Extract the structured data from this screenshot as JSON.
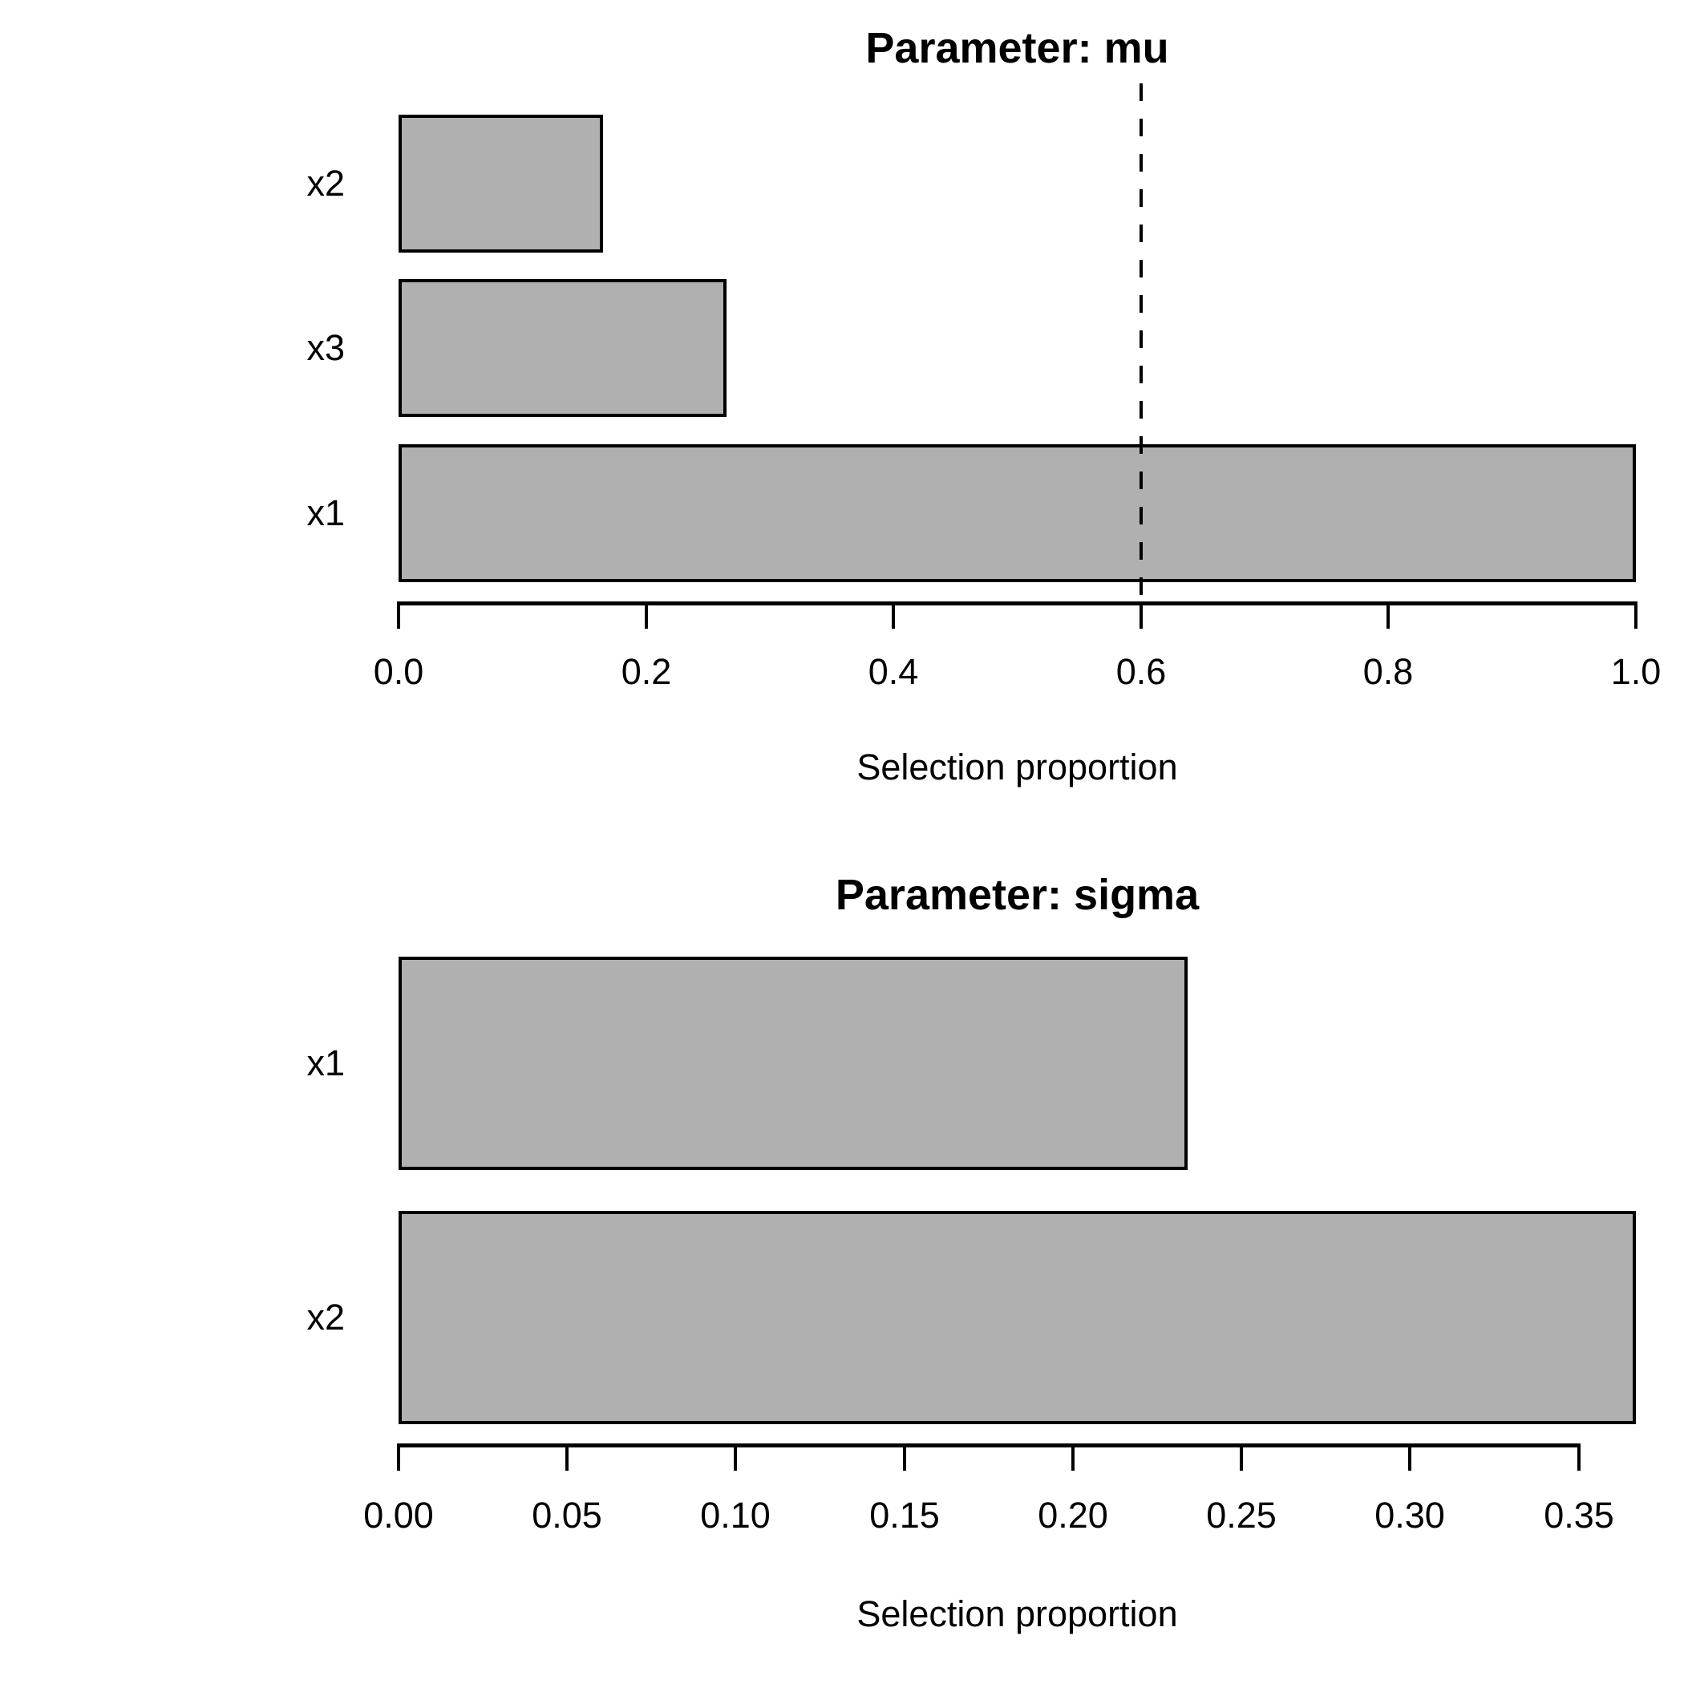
{
  "figure": {
    "background": "#ffffff"
  },
  "colors": {
    "bar_fill": "#b0b0b0",
    "bar_border": "#000000",
    "axis": "#000000",
    "text": "#000000",
    "threshold": "#000000"
  },
  "chart_data": [
    {
      "type": "bar",
      "orientation": "horizontal",
      "title": "Parameter: mu",
      "categories": [
        "x2",
        "x3",
        "x1"
      ],
      "values": [
        0.165,
        0.265,
        1.0
      ],
      "xlabel": "Selection proportion",
      "xlim": [
        0,
        1.0
      ],
      "xticks": [
        0,
        0.2,
        0.4,
        0.6,
        0.8,
        1.0
      ],
      "xtick_labels": [
        "0.0",
        "0.2",
        "0.4",
        "0.6",
        "0.8",
        "1.0"
      ],
      "threshold": 0.6,
      "threshold_style": "dashed",
      "grid": false,
      "legend": null
    },
    {
      "type": "bar",
      "orientation": "horizontal",
      "title": "Parameter: sigma",
      "categories": [
        "x1",
        "x2"
      ],
      "values": [
        0.234,
        0.367
      ],
      "xlabel": "Selection proportion",
      "xlim": [
        0,
        0.367
      ],
      "xticks": [
        0,
        0.05,
        0.1,
        0.15,
        0.2,
        0.25,
        0.3,
        0.35
      ],
      "xtick_labels": [
        "0.00",
        "0.05",
        "0.10",
        "0.15",
        "0.20",
        "0.25",
        "0.30",
        "0.35"
      ],
      "threshold": null,
      "threshold_style": null,
      "grid": false,
      "legend": null
    }
  ]
}
